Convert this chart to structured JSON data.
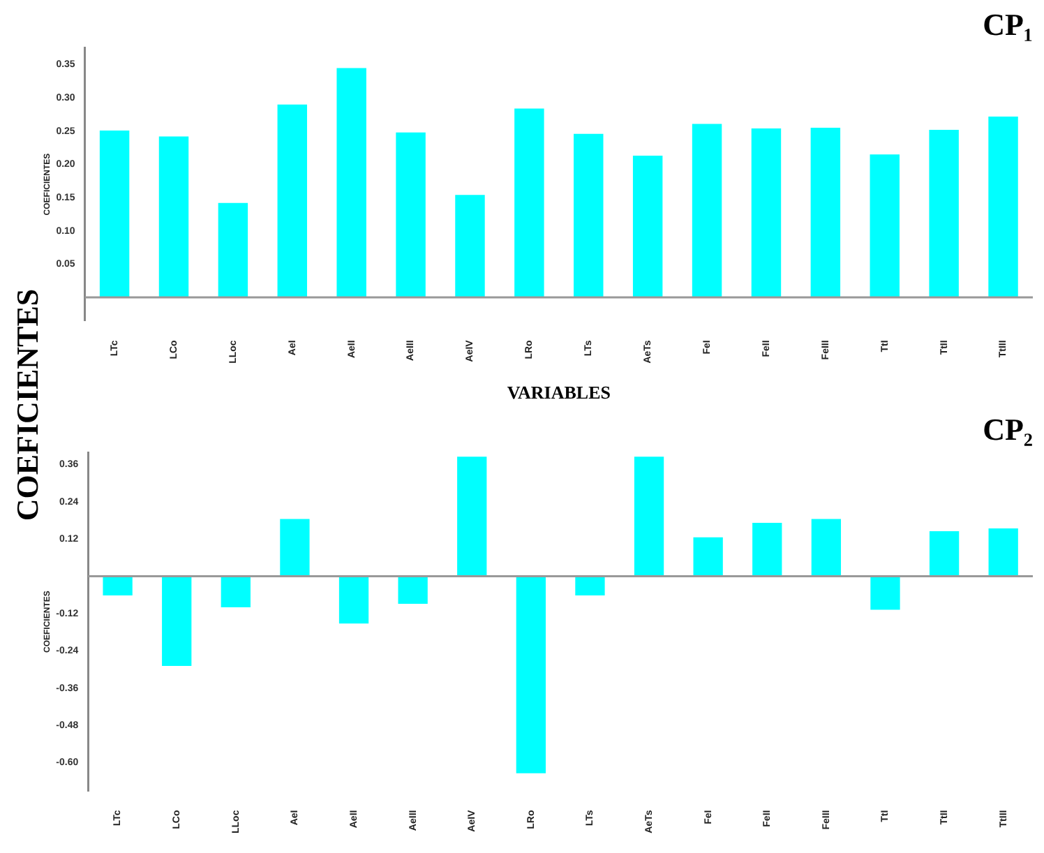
{
  "chart_data": [
    {
      "type": "bar",
      "title": "CP₁",
      "xlabel": "VARIABLES",
      "ylabel": "COEFICIENTES",
      "annotations": [
        "COEFICIENTES"
      ],
      "categories": [
        "LTc",
        "LCo",
        "LLoc",
        "AeI",
        "AeII",
        "AeIII",
        "AeIV",
        "LRo",
        "LTs",
        "AeTs",
        "FeI",
        "FeII",
        "FeIII",
        "TtI",
        "TtII",
        "TtIII"
      ],
      "values": [
        0.251,
        0.242,
        0.142,
        0.29,
        0.345,
        0.248,
        0.154,
        0.284,
        0.246,
        0.213,
        0.261,
        0.254,
        0.255,
        0.215,
        0.252,
        0.272
      ],
      "color": "#00ffff",
      "ylim": [
        -0.035,
        0.375
      ],
      "yticks": [
        {
          "value": 0.05,
          "label": "0.05"
        },
        {
          "value": 0.1,
          "label": "0.10"
        },
        {
          "value": 0.15,
          "label": "0.15"
        },
        {
          "value": 0.2,
          "label": "0.20"
        },
        {
          "value": 0.25,
          "label": "0.25"
        },
        {
          "value": 0.3,
          "label": "0.30"
        },
        {
          "value": 0.35,
          "label": "0.35"
        }
      ]
    },
    {
      "type": "bar",
      "title": "CP₂",
      "ylabel": "COEFICIENTES",
      "categories": [
        "LTc",
        "LCo",
        "LLoc",
        "AeI",
        "AeII",
        "AeIII",
        "AeIV",
        "LRo",
        "LTs",
        "AeTs",
        "FeI",
        "FeII",
        "FeIII",
        "TtI",
        "TtII",
        "TtIII"
      ],
      "values": [
        -0.062,
        -0.289,
        -0.1,
        0.184,
        -0.152,
        -0.089,
        0.385,
        -0.634,
        -0.062,
        0.385,
        0.125,
        0.172,
        0.184,
        -0.108,
        0.145,
        0.154
      ],
      "color": "#00ffff",
      "ylim": [
        -0.69,
        0.397
      ],
      "yticks": [
        {
          "value": -0.6,
          "label": "-0.60"
        },
        {
          "value": -0.48,
          "label": "-0.48"
        },
        {
          "value": -0.36,
          "label": "-0.36"
        },
        {
          "value": -0.24,
          "label": "-0.24"
        },
        {
          "value": -0.12,
          "label": "-0.12"
        },
        {
          "value": 0.12,
          "label": "0.12"
        },
        {
          "value": 0.24,
          "label": "0.24"
        },
        {
          "value": 0.36,
          "label": "0.36"
        }
      ]
    }
  ]
}
